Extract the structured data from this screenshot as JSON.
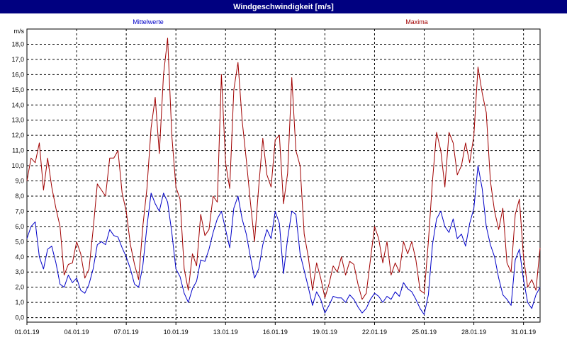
{
  "window": {
    "title": "Windgeschwindigkeit [m/s]"
  },
  "colors": {
    "mean": "#0000c8",
    "max": "#a00000",
    "grid": "#000000",
    "title_bg": "#000080"
  },
  "chart_data": {
    "type": "line",
    "title": "Windgeschwindigkeit [m/s]",
    "ylabel": "m/s",
    "ylim": [
      -0.3,
      19.0
    ],
    "grid": true,
    "y_ticks": [
      "0,0",
      "1,0",
      "2,0",
      "3,0",
      "4,0",
      "5,0",
      "6,0",
      "7,0",
      "8,0",
      "9,0",
      "10,0",
      "11,0",
      "12,0",
      "13,0",
      "14,0",
      "15,0",
      "16,0",
      "17,0",
      "18,0"
    ],
    "x_ticks": [
      "01.01.19",
      "04.01.19",
      "07.01.19",
      "10.01.19",
      "13.01.19",
      "16.01.19",
      "19.01.19",
      "22.01.19",
      "25.01.19",
      "28.01.19",
      "31.01.19"
    ],
    "x_range_days": [
      1,
      32
    ],
    "series": [
      {
        "name": "Mittelwerte",
        "color": "#0000c8",
        "points": [
          [
            1.0,
            5.2
          ],
          [
            1.25,
            6.0
          ],
          [
            1.5,
            6.3
          ],
          [
            1.75,
            4.0
          ],
          [
            2.0,
            3.2
          ],
          [
            2.25,
            4.5
          ],
          [
            2.5,
            4.7
          ],
          [
            2.75,
            3.6
          ],
          [
            3.0,
            2.2
          ],
          [
            3.25,
            2.0
          ],
          [
            3.5,
            2.8
          ],
          [
            3.75,
            2.3
          ],
          [
            4.0,
            2.6
          ],
          [
            4.25,
            1.8
          ],
          [
            4.5,
            1.6
          ],
          [
            4.75,
            2.2
          ],
          [
            5.0,
            3.2
          ],
          [
            5.25,
            4.8
          ],
          [
            5.5,
            5.0
          ],
          [
            5.75,
            4.8
          ],
          [
            6.0,
            5.8
          ],
          [
            6.25,
            5.4
          ],
          [
            6.5,
            5.3
          ],
          [
            6.75,
            4.6
          ],
          [
            7.0,
            4.0
          ],
          [
            7.25,
            3.2
          ],
          [
            7.5,
            2.2
          ],
          [
            7.75,
            2.0
          ],
          [
            8.0,
            3.4
          ],
          [
            8.25,
            6.0
          ],
          [
            8.5,
            8.2
          ],
          [
            8.75,
            7.5
          ],
          [
            9.0,
            7.0
          ],
          [
            9.25,
            8.2
          ],
          [
            9.5,
            7.6
          ],
          [
            9.75,
            5.6
          ],
          [
            10.0,
            3.2
          ],
          [
            10.25,
            2.7
          ],
          [
            10.5,
            1.6
          ],
          [
            10.75,
            1.0
          ],
          [
            11.0,
            1.9
          ],
          [
            11.25,
            2.4
          ],
          [
            11.5,
            3.8
          ],
          [
            11.75,
            3.7
          ],
          [
            12.0,
            4.5
          ],
          [
            12.25,
            5.6
          ],
          [
            12.5,
            6.5
          ],
          [
            12.75,
            7.0
          ],
          [
            13.0,
            5.8
          ],
          [
            13.25,
            4.6
          ],
          [
            13.5,
            7.2
          ],
          [
            13.75,
            8.0
          ],
          [
            14.0,
            6.5
          ],
          [
            14.25,
            5.5
          ],
          [
            14.5,
            4.0
          ],
          [
            14.75,
            2.6
          ],
          [
            15.0,
            3.2
          ],
          [
            15.25,
            4.8
          ],
          [
            15.5,
            5.8
          ],
          [
            15.75,
            5.2
          ],
          [
            16.0,
            7.0
          ],
          [
            16.25,
            6.2
          ],
          [
            16.5,
            2.9
          ],
          [
            16.75,
            5.2
          ],
          [
            17.0,
            7.0
          ],
          [
            17.25,
            6.8
          ],
          [
            17.5,
            4.2
          ],
          [
            17.75,
            3.1
          ],
          [
            18.0,
            2.0
          ],
          [
            18.25,
            0.8
          ],
          [
            18.5,
            1.7
          ],
          [
            18.75,
            1.2
          ],
          [
            19.0,
            0.3
          ],
          [
            19.25,
            0.8
          ],
          [
            19.5,
            1.4
          ],
          [
            19.75,
            1.3
          ],
          [
            20.0,
            1.3
          ],
          [
            20.25,
            1.0
          ],
          [
            20.5,
            1.5
          ],
          [
            20.75,
            1.2
          ],
          [
            21.0,
            0.7
          ],
          [
            21.25,
            0.3
          ],
          [
            21.5,
            0.6
          ],
          [
            21.75,
            1.2
          ],
          [
            22.0,
            1.6
          ],
          [
            22.25,
            1.4
          ],
          [
            22.5,
            1.0
          ],
          [
            22.75,
            1.4
          ],
          [
            23.0,
            1.2
          ],
          [
            23.25,
            1.7
          ],
          [
            23.5,
            1.4
          ],
          [
            23.75,
            2.3
          ],
          [
            24.0,
            1.9
          ],
          [
            24.25,
            1.7
          ],
          [
            24.5,
            1.2
          ],
          [
            24.75,
            0.6
          ],
          [
            25.0,
            0.2
          ],
          [
            25.25,
            1.5
          ],
          [
            25.5,
            4.8
          ],
          [
            25.75,
            6.5
          ],
          [
            26.0,
            7.0
          ],
          [
            26.25,
            6.0
          ],
          [
            26.5,
            5.6
          ],
          [
            26.75,
            6.5
          ],
          [
            27.0,
            5.2
          ],
          [
            27.25,
            5.5
          ],
          [
            27.5,
            4.7
          ],
          [
            27.75,
            6.2
          ],
          [
            28.0,
            7.2
          ],
          [
            28.25,
            10.0
          ],
          [
            28.5,
            8.5
          ],
          [
            28.75,
            6.0
          ],
          [
            29.0,
            4.8
          ],
          [
            29.25,
            4.0
          ],
          [
            29.5,
            2.6
          ],
          [
            29.75,
            1.5
          ],
          [
            30.0,
            1.2
          ],
          [
            30.25,
            0.8
          ],
          [
            30.5,
            3.8
          ],
          [
            30.75,
            4.5
          ],
          [
            31.0,
            2.5
          ],
          [
            31.25,
            1.0
          ],
          [
            31.5,
            0.6
          ],
          [
            31.75,
            1.5
          ],
          [
            32.0,
            2.0
          ]
        ]
      },
      {
        "name": "Maxima",
        "color": "#a00000",
        "points": [
          [
            1.0,
            9.0
          ],
          [
            1.25,
            10.5
          ],
          [
            1.5,
            10.2
          ],
          [
            1.75,
            11.5
          ],
          [
            2.0,
            8.4
          ],
          [
            2.25,
            10.5
          ],
          [
            2.5,
            8.6
          ],
          [
            2.75,
            7.2
          ],
          [
            3.0,
            6.0
          ],
          [
            3.25,
            2.8
          ],
          [
            3.5,
            3.5
          ],
          [
            3.75,
            3.6
          ],
          [
            4.0,
            5.0
          ],
          [
            4.25,
            4.2
          ],
          [
            4.5,
            2.6
          ],
          [
            4.75,
            3.2
          ],
          [
            5.0,
            5.8
          ],
          [
            5.25,
            8.8
          ],
          [
            5.5,
            8.4
          ],
          [
            5.75,
            8.0
          ],
          [
            6.0,
            10.5
          ],
          [
            6.25,
            10.5
          ],
          [
            6.5,
            11.0
          ],
          [
            6.75,
            8.2
          ],
          [
            7.0,
            7.0
          ],
          [
            7.25,
            4.8
          ],
          [
            7.5,
            3.5
          ],
          [
            7.75,
            2.5
          ],
          [
            8.0,
            6.0
          ],
          [
            8.25,
            8.5
          ],
          [
            8.5,
            12.5
          ],
          [
            8.75,
            14.5
          ],
          [
            9.0,
            10.8
          ],
          [
            9.25,
            16.0
          ],
          [
            9.5,
            18.4
          ],
          [
            9.75,
            12.0
          ],
          [
            10.0,
            8.6
          ],
          [
            10.25,
            7.8
          ],
          [
            10.5,
            3.2
          ],
          [
            10.75,
            1.8
          ],
          [
            11.0,
            4.2
          ],
          [
            11.25,
            3.4
          ],
          [
            11.5,
            6.8
          ],
          [
            11.75,
            5.4
          ],
          [
            12.0,
            5.8
          ],
          [
            12.25,
            8.0
          ],
          [
            12.5,
            7.6
          ],
          [
            12.75,
            16.0
          ],
          [
            13.0,
            10.2
          ],
          [
            13.25,
            8.5
          ],
          [
            13.5,
            15.0
          ],
          [
            13.75,
            16.8
          ],
          [
            14.0,
            13.0
          ],
          [
            14.25,
            10.4
          ],
          [
            14.5,
            7.6
          ],
          [
            14.75,
            5.0
          ],
          [
            15.0,
            8.6
          ],
          [
            15.25,
            11.8
          ],
          [
            15.5,
            9.4
          ],
          [
            15.75,
            8.6
          ],
          [
            16.0,
            11.7
          ],
          [
            16.25,
            12.0
          ],
          [
            16.5,
            7.5
          ],
          [
            16.75,
            9.5
          ],
          [
            17.0,
            15.8
          ],
          [
            17.25,
            11.0
          ],
          [
            17.5,
            10.0
          ],
          [
            17.75,
            5.5
          ],
          [
            18.0,
            4.0
          ],
          [
            18.25,
            1.8
          ],
          [
            18.5,
            3.6
          ],
          [
            18.75,
            2.6
          ],
          [
            19.0,
            1.3
          ],
          [
            19.25,
            2.2
          ],
          [
            19.5,
            3.4
          ],
          [
            19.75,
            3.0
          ],
          [
            20.0,
            4.0
          ],
          [
            20.25,
            2.8
          ],
          [
            20.5,
            3.7
          ],
          [
            20.75,
            3.5
          ],
          [
            21.0,
            2.2
          ],
          [
            21.25,
            1.2
          ],
          [
            21.5,
            1.6
          ],
          [
            21.75,
            3.8
          ],
          [
            22.0,
            6.0
          ],
          [
            22.25,
            5.2
          ],
          [
            22.5,
            3.6
          ],
          [
            22.75,
            5.0
          ],
          [
            23.0,
            2.8
          ],
          [
            23.25,
            3.6
          ],
          [
            23.5,
            3.0
          ],
          [
            23.75,
            5.0
          ],
          [
            24.0,
            4.2
          ],
          [
            24.25,
            5.0
          ],
          [
            24.5,
            3.8
          ],
          [
            24.75,
            1.8
          ],
          [
            25.0,
            1.6
          ],
          [
            25.25,
            5.0
          ],
          [
            25.5,
            9.0
          ],
          [
            25.75,
            12.2
          ],
          [
            26.0,
            11.0
          ],
          [
            26.25,
            8.6
          ],
          [
            26.5,
            12.2
          ],
          [
            26.75,
            11.5
          ],
          [
            27.0,
            9.4
          ],
          [
            27.25,
            10.0
          ],
          [
            27.5,
            11.5
          ],
          [
            27.75,
            10.2
          ],
          [
            28.0,
            12.0
          ],
          [
            28.25,
            16.5
          ],
          [
            28.5,
            14.8
          ],
          [
            28.75,
            13.5
          ],
          [
            29.0,
            9.0
          ],
          [
            29.25,
            7.0
          ],
          [
            29.5,
            5.8
          ],
          [
            29.75,
            7.2
          ],
          [
            30.0,
            3.6
          ],
          [
            30.25,
            3.0
          ],
          [
            30.5,
            6.8
          ],
          [
            30.75,
            7.8
          ],
          [
            31.0,
            4.0
          ],
          [
            31.25,
            2.0
          ],
          [
            31.5,
            2.5
          ],
          [
            31.75,
            1.8
          ],
          [
            32.0,
            4.6
          ]
        ]
      }
    ]
  }
}
